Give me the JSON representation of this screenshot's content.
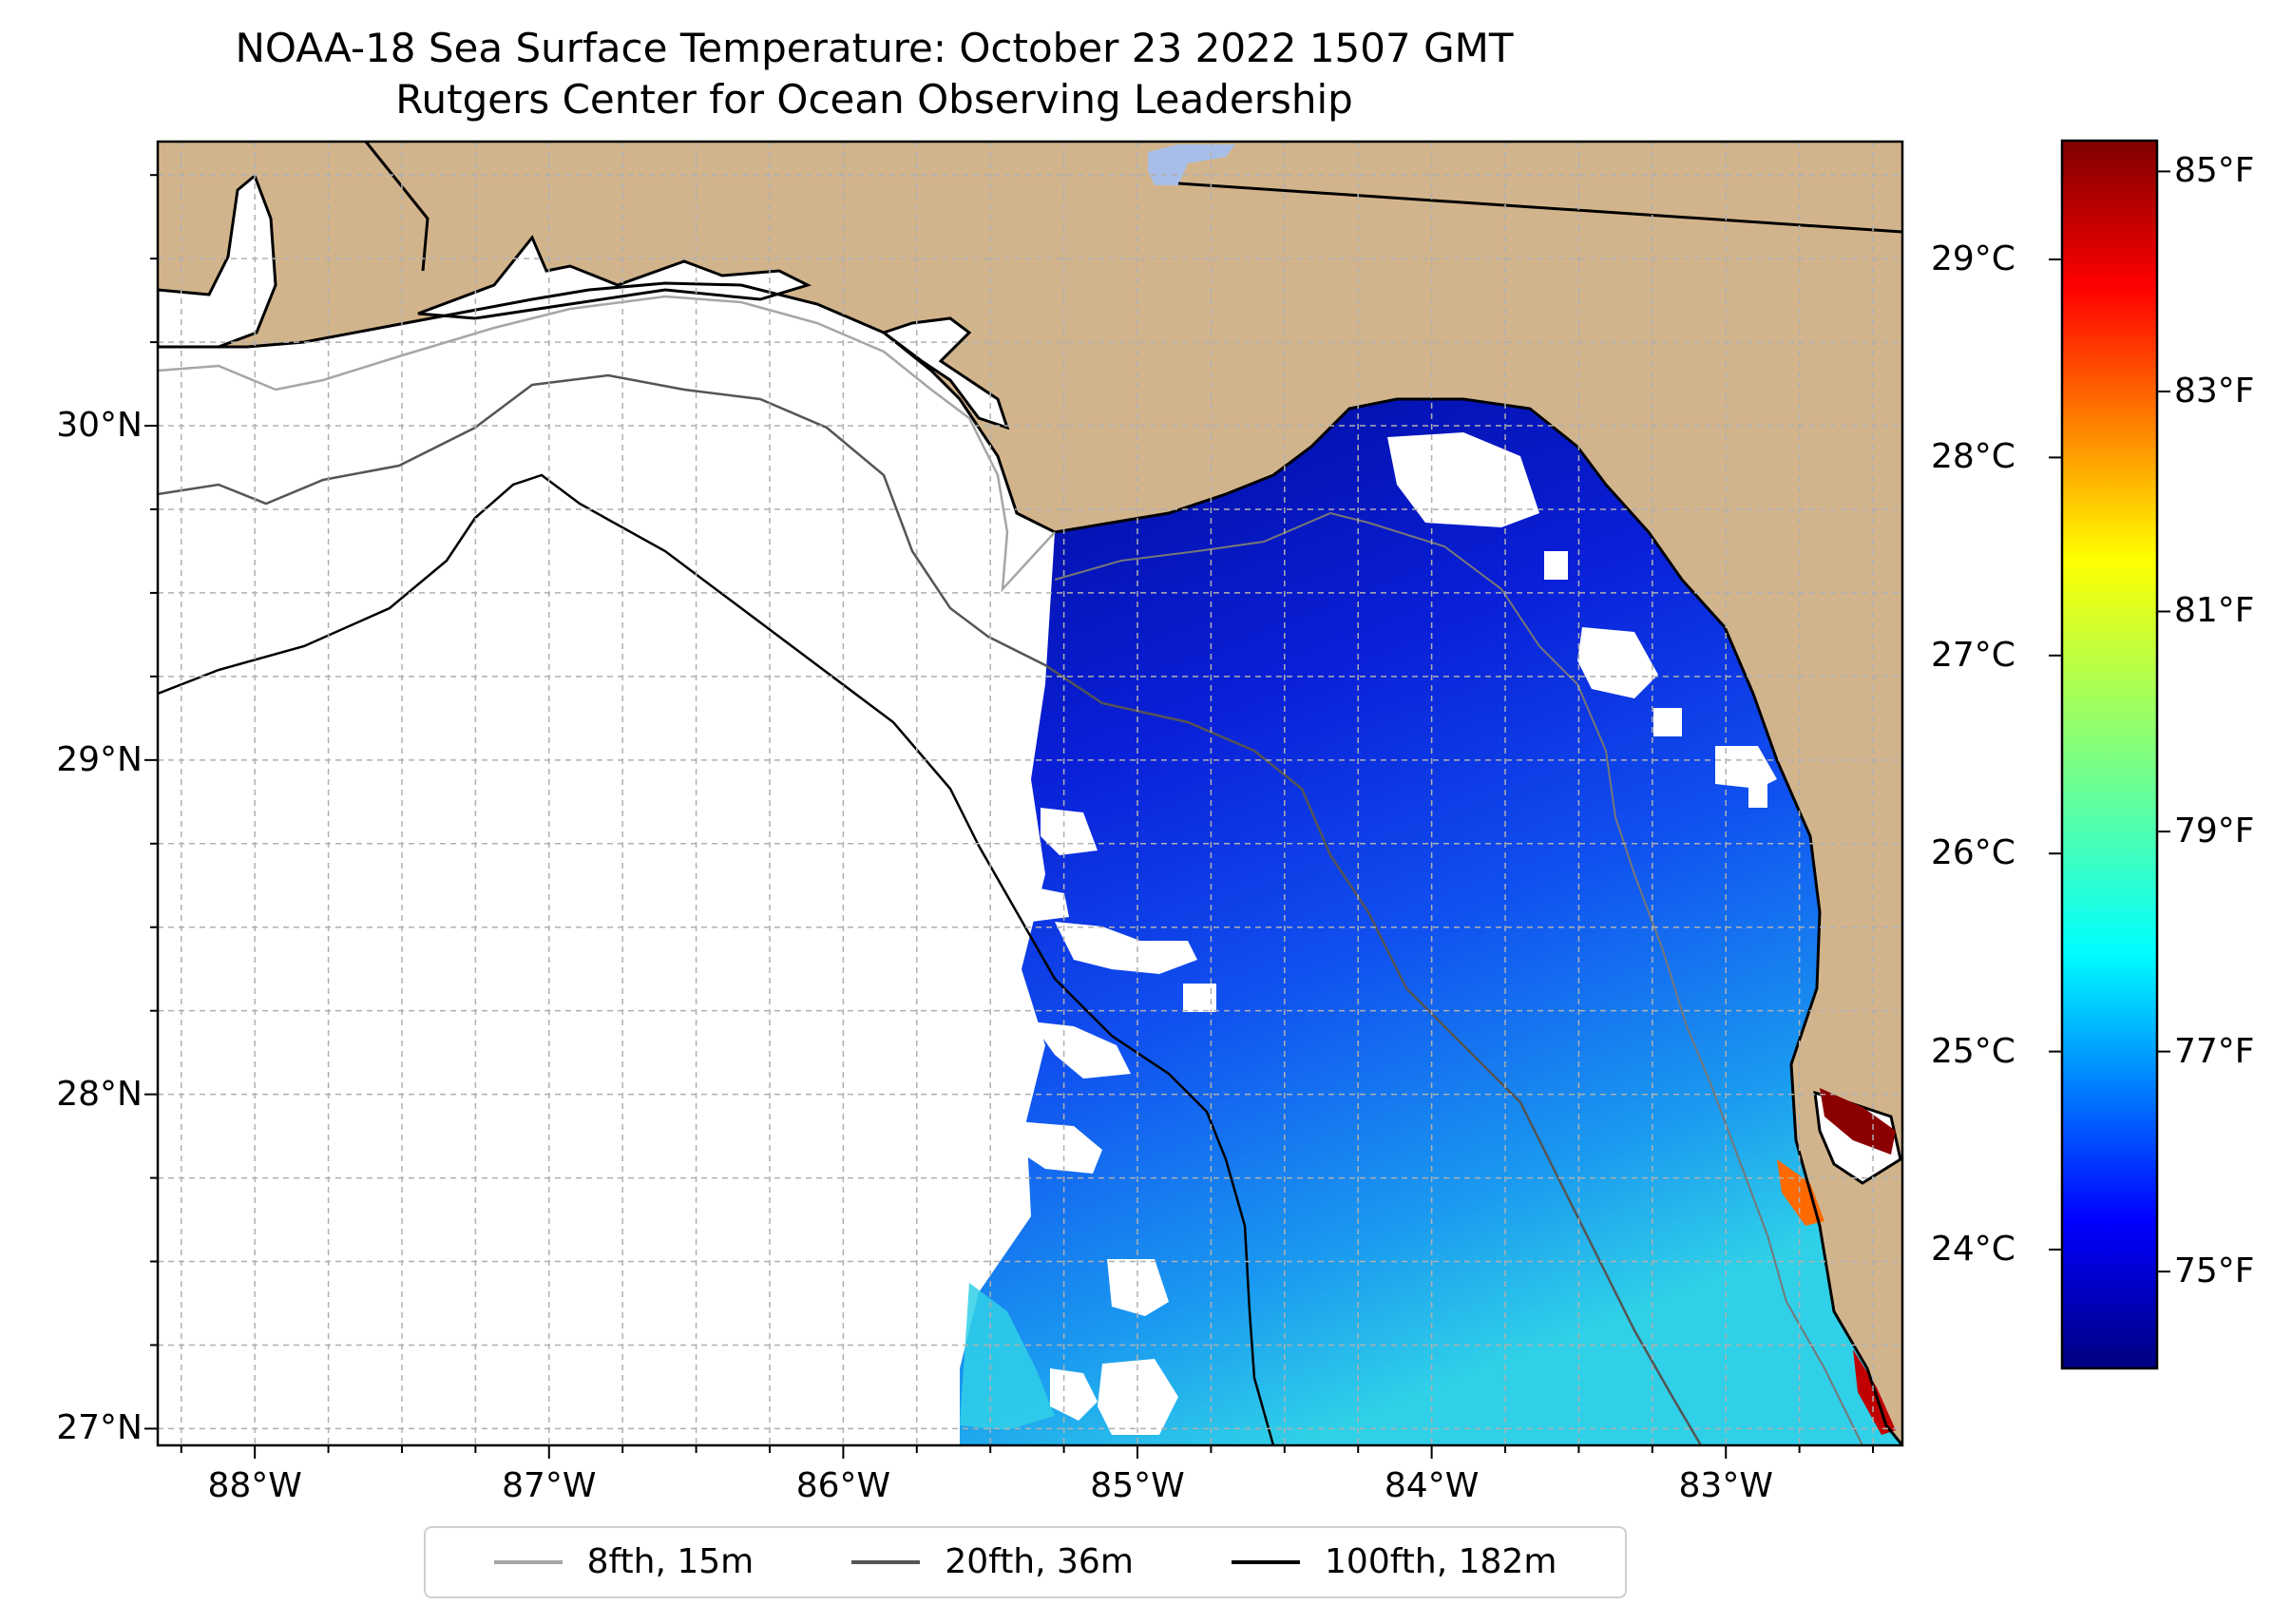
{
  "title": "NOAA-18 Sea Surface Temperature: October 23 2022 1507 GMT",
  "subtitle": "Rutgers Center for Ocean Observing Leadership",
  "map": {
    "lon_range": [
      -88.33,
      -82.4
    ],
    "lat_range": [
      26.95,
      30.85
    ],
    "land_color": "#d2b48c",
    "no_data_color": "#ffffff",
    "x_ticks": [
      {
        "lon": -88,
        "label": "88°W"
      },
      {
        "lon": -87,
        "label": "87°W"
      },
      {
        "lon": -86,
        "label": "86°W"
      },
      {
        "lon": -85,
        "label": "85°W"
      },
      {
        "lon": -84,
        "label": "84°W"
      },
      {
        "lon": -83,
        "label": "83°W"
      }
    ],
    "y_ticks": [
      {
        "lat": 30,
        "label": "30°N"
      },
      {
        "lat": 29,
        "label": "29°N"
      },
      {
        "lat": 28,
        "label": "28°N"
      },
      {
        "lat": 27,
        "label": "27°N"
      }
    ],
    "minor_grid_step_deg": 0.25,
    "grid": true
  },
  "colorbar": {
    "colormap": "jet",
    "celsius_range": [
      23.4,
      29.6
    ],
    "celsius_ticks": [
      {
        "value": 29,
        "label": "29°C"
      },
      {
        "value": 28,
        "label": "28°C"
      },
      {
        "value": 27,
        "label": "27°C"
      },
      {
        "value": 26,
        "label": "26°C"
      },
      {
        "value": 25,
        "label": "25°C"
      },
      {
        "value": 24,
        "label": "24°C"
      }
    ],
    "fahrenheit_ticks": [
      {
        "value": 85,
        "label": "85°F"
      },
      {
        "value": 83,
        "label": "83°F"
      },
      {
        "value": 81,
        "label": "81°F"
      },
      {
        "value": 79,
        "label": "79°F"
      },
      {
        "value": 77,
        "label": "77°F"
      },
      {
        "value": 75,
        "label": "75°F"
      }
    ]
  },
  "legend": {
    "placement": "bottom-center",
    "items": [
      {
        "label": "8fth, 15m",
        "color": "#a6a6a6"
      },
      {
        "label": "20fth, 36m",
        "color": "#555555"
      },
      {
        "label": "100fth, 182m",
        "color": "#000000"
      }
    ]
  }
}
